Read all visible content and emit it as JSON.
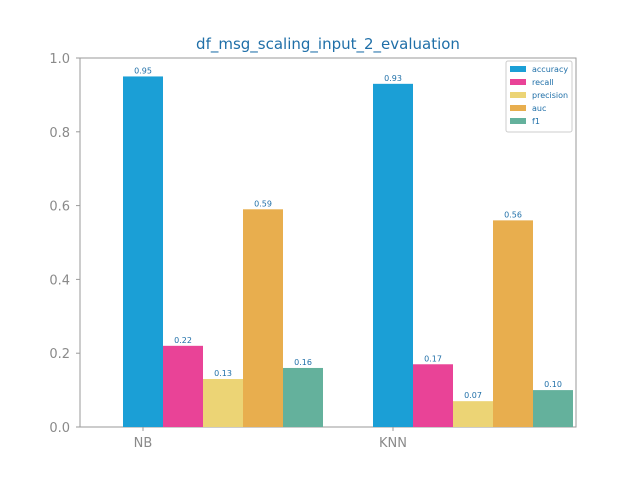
{
  "chart_data": {
    "type": "bar",
    "title": "df_msg_scaling_input_2_evaluation",
    "xlabel": "",
    "ylabel": "",
    "categories": [
      "NB",
      "KNN"
    ],
    "ylim": [
      0,
      1.0
    ],
    "yticks": [
      "0.0",
      "0.2",
      "0.4",
      "0.6",
      "0.8",
      "1.0"
    ],
    "grid": false,
    "legend_position": "top-right",
    "series": [
      {
        "name": "accuracy",
        "color": "#1b9fd6",
        "values": [
          0.95,
          0.93
        ],
        "labels": [
          "0.95",
          "0.93"
        ]
      },
      {
        "name": "recall",
        "color": "#e94397",
        "values": [
          0.22,
          0.17
        ],
        "labels": [
          "0.22",
          "0.17"
        ]
      },
      {
        "name": "precision",
        "color": "#ecd475",
        "values": [
          0.13,
          0.07
        ],
        "labels": [
          "0.13",
          "0.07"
        ]
      },
      {
        "name": "auc",
        "color": "#e8ae4e",
        "values": [
          0.59,
          0.56
        ],
        "labels": [
          "0.59",
          "0.56"
        ]
      },
      {
        "name": "f1",
        "color": "#64b19c",
        "values": [
          0.16,
          0.1
        ],
        "labels": [
          "0.16",
          "0.10"
        ]
      }
    ]
  }
}
